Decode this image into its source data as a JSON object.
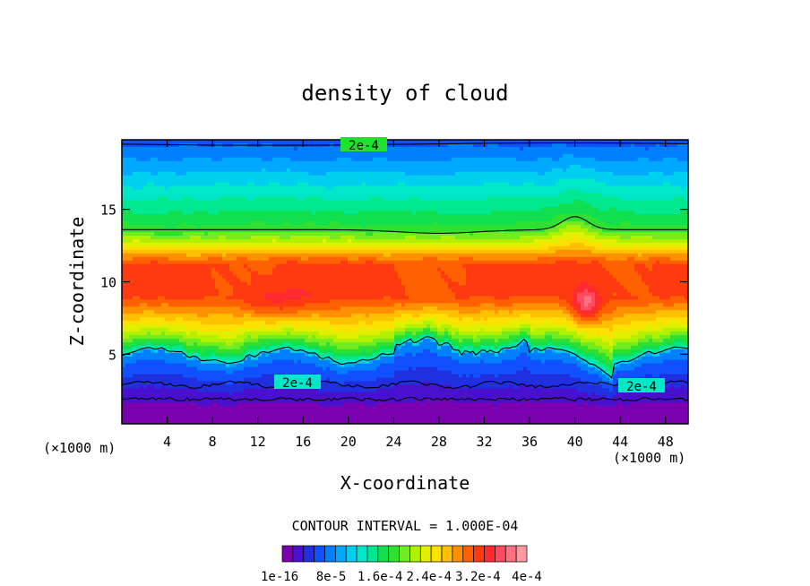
{
  "chart_data": {
    "type": "heatmap",
    "title": "density of cloud",
    "xlabel": "X-coordinate",
    "ylabel": "Z-coordinate",
    "x_unit_left": "(×1000 m)",
    "x_unit_right": "(×1000 m)",
    "xlim": [
      0,
      50
    ],
    "ylim": [
      0.2,
      19.8
    ],
    "x_ticks": [
      "4",
      "8",
      "12",
      "16",
      "20",
      "24",
      "28",
      "32",
      "36",
      "40",
      "44",
      "48"
    ],
    "y_ticks": [
      "5",
      "10",
      "15"
    ],
    "contour_interval_text": "CONTOUR INTERVAL = 1.000E-04",
    "contour_labels": [
      "2e-4",
      "2e-4",
      "2e-4"
    ],
    "colorbar": {
      "min": 1e-16,
      "max": 0.0004,
      "labels": [
        "1e-16",
        "8e-5",
        "1.6e-4",
        "2.4e-4",
        "3.2e-4",
        "4e-4"
      ],
      "colors": [
        "#7a00b0",
        "#4a10d0",
        "#2030e0",
        "#1050ff",
        "#0080ff",
        "#00a8ff",
        "#00d0f0",
        "#00e8c8",
        "#00e890",
        "#10e050",
        "#30e030",
        "#70ec20",
        "#b0f000",
        "#e0f000",
        "#ffe000",
        "#ffc000",
        "#ff9000",
        "#ff6000",
        "#ff3a10",
        "#ff2a30",
        "#ff4a60",
        "#ff7080",
        "#ff9aa0"
      ]
    }
  }
}
